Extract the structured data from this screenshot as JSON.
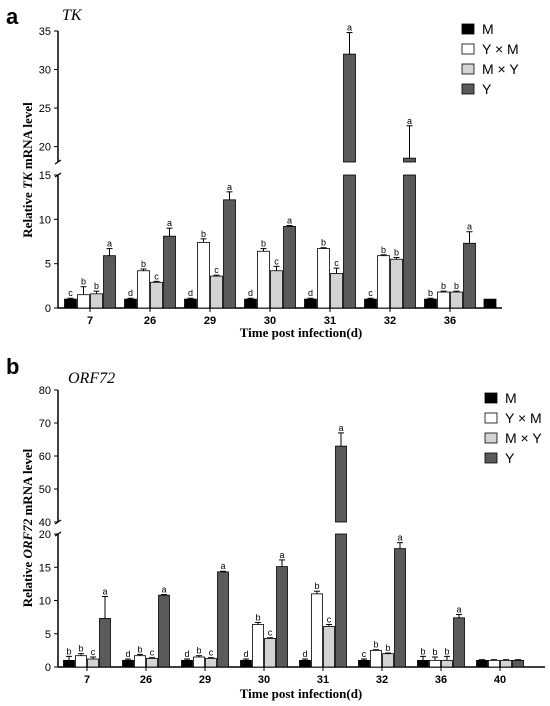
{
  "figure": {
    "chart_data": [
      {
        "panel": "a",
        "gene": "TK",
        "type": "bar",
        "categories": [
          "7",
          "26",
          "29",
          "30",
          "31",
          "32",
          "36"
        ],
        "xlabel_prefix": "Time post infection(d)",
        "ylabel_prefix": "Relative ",
        "ylabel_gene": "TK",
        "ylabel_suffix": " mRNA level",
        "ylim": [
          0,
          35
        ],
        "axis_break": [
          15,
          18
        ],
        "yticks_lower": [
          "0",
          "5",
          "10",
          "15"
        ],
        "yticks_upper": [
          "20",
          "25",
          "30",
          "35"
        ],
        "legend_position": "top-right",
        "series": [
          {
            "name": "M",
            "values": [
              1.0,
              1.0,
              1.0,
              1.0,
              1.0,
              1.0,
              1.0
            ],
            "errors": [
              0.1,
              0.1,
              0.1,
              0.1,
              0.1,
              0.1,
              0.1
            ],
            "letters": [
              "c",
              "d",
              "d",
              "d",
              "d",
              "c",
              "b"
            ],
            "color": "#000000"
          },
          {
            "name": "Y × M",
            "values": [
              1.5,
              4.2,
              7.4,
              6.4,
              6.7,
              5.9,
              1.8
            ],
            "errors": [
              0.9,
              0.2,
              0.4,
              0.3,
              0.1,
              0.1,
              0.1
            ],
            "letters": [
              "b",
              "b",
              "b",
              "b",
              "b",
              "b",
              "b"
            ],
            "color": "#ffffff"
          },
          {
            "name": "M × Y",
            "values": [
              1.6,
              2.9,
              3.6,
              4.2,
              3.9,
              5.5,
              1.8
            ],
            "errors": [
              0.3,
              0.1,
              0.1,
              0.5,
              0.6,
              0.2,
              0.1
            ],
            "letters": [
              "b",
              "c",
              "c",
              "c",
              "c",
              "b",
              "b"
            ],
            "color": "#d3d3d3"
          },
          {
            "name": "Y",
            "values": [
              5.9,
              8.1,
              12.2,
              9.2,
              32.0,
              18.5,
              7.3
            ],
            "errors": [
              0.8,
              0.9,
              0.9,
              0.1,
              2.8,
              4.2,
              1.3
            ],
            "letters": [
              "a",
              "a",
              "a",
              "a",
              "a",
              "a",
              "a"
            ],
            "color": "#5a5a5a"
          }
        ],
        "extra_bar": {
          "category": "",
          "value": 1.0,
          "color": "#000000"
        }
      },
      {
        "panel": "b",
        "gene": "ORF72",
        "type": "bar",
        "categories": [
          "7",
          "26",
          "29",
          "30",
          "31",
          "32",
          "36",
          "40"
        ],
        "xlabel_prefix": "Time post infection(d)",
        "ylabel_prefix": "Relative ",
        "ylabel_gene": "ORF72",
        "ylabel_suffix": " mRNA level",
        "ylim": [
          0,
          80
        ],
        "axis_break": [
          20,
          40
        ],
        "yticks_lower": [
          "0",
          "5",
          "10",
          "15",
          "20"
        ],
        "yticks_upper": [
          "40",
          "50",
          "60",
          "70",
          "80"
        ],
        "legend_position": "top-right",
        "series": [
          {
            "name": "M",
            "values": [
              1.0,
              1.0,
              1.0,
              1.0,
              1.0,
              1.0,
              1.0,
              1.0
            ],
            "errors": [
              0.6,
              0.2,
              0.2,
              0.2,
              0.2,
              0.2,
              0.6,
              0.1
            ],
            "letters": [
              "b",
              "d",
              "d",
              "d",
              "d",
              "c",
              "b",
              ""
            ],
            "color": "#000000"
          },
          {
            "name": "Y × M",
            "values": [
              1.7,
              1.7,
              1.5,
              6.4,
              11.0,
              2.5,
              1.0,
              1.0
            ],
            "errors": [
              0.3,
              0.2,
              0.2,
              0.3,
              0.4,
              0.1,
              0.5,
              0.1
            ],
            "letters": [
              "b",
              "b",
              "b",
              "b",
              "b",
              "b",
              "b",
              ""
            ],
            "color": "#ffffff"
          },
          {
            "name": "M × Y",
            "values": [
              1.2,
              1.3,
              1.3,
              4.3,
              6.1,
              2.0,
              1.0,
              1.0
            ],
            "errors": [
              0.3,
              0.1,
              0.1,
              0.1,
              0.3,
              0.1,
              0.6,
              0.1
            ],
            "letters": [
              "c",
              "c",
              "c",
              "c",
              "c",
              "b",
              "b",
              ""
            ],
            "color": "#d3d3d3"
          },
          {
            "name": "Y",
            "values": [
              7.3,
              10.8,
              14.3,
              15.1,
              63.0,
              17.8,
              7.4,
              1.0
            ],
            "errors": [
              3.3,
              0.1,
              0.1,
              1.0,
              4.0,
              0.9,
              0.5,
              0.1
            ],
            "letters": [
              "a",
              "a",
              "a",
              "a",
              "a",
              "a",
              "a",
              ""
            ],
            "color": "#5a5a5a"
          }
        ]
      }
    ]
  }
}
